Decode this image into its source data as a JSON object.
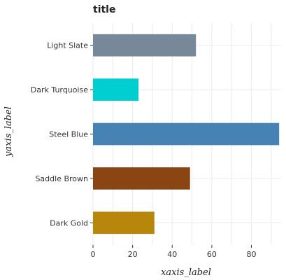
{
  "chart_data": {
    "type": "bar",
    "orientation": "horizontal",
    "title": "title",
    "xlabel": "xaxis_label",
    "ylabel": "yaxis_label",
    "xlim": [
      0,
      95
    ],
    "x_ticks": [
      0,
      20,
      40,
      60,
      80
    ],
    "grid": true,
    "categories": [
      "Dark Gold",
      "Saddle Brown",
      "Steel Blue",
      "Dark Turquoise",
      "Light Slate"
    ],
    "values": [
      31,
      49,
      94,
      23,
      52
    ],
    "colors": [
      "#b8860b",
      "#8b4513",
      "#4682b4",
      "#00ced1",
      "#778899"
    ]
  }
}
